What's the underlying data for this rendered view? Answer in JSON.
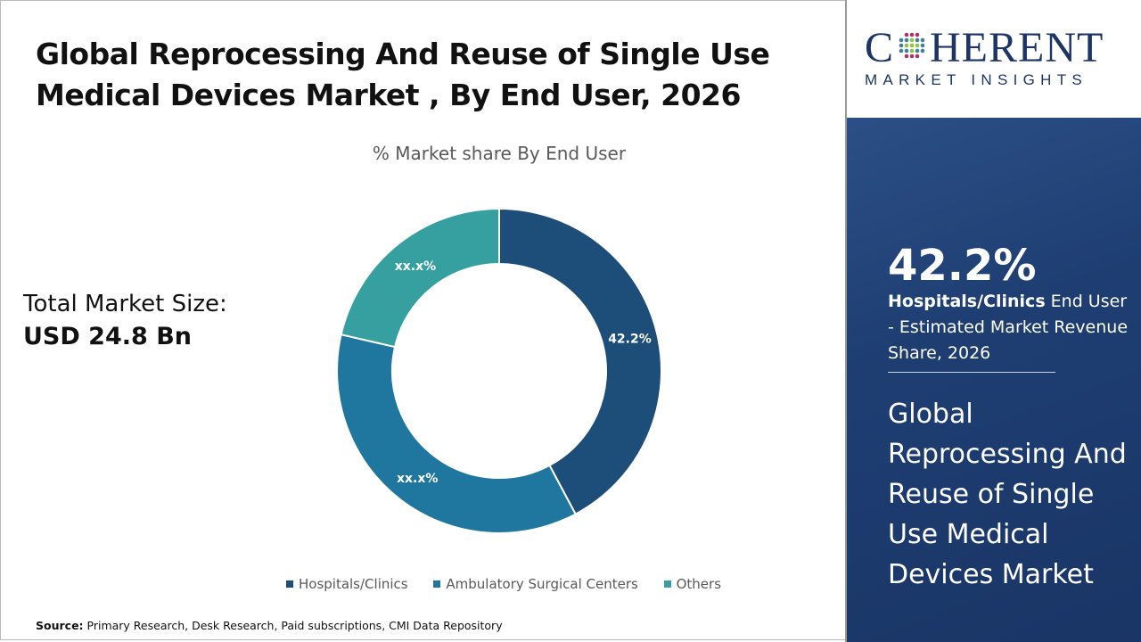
{
  "title": "Global Reprocessing And Reuse of Single Use Medical Devices Market , By End User, 2026",
  "total_market": {
    "label": "Total Market Size:",
    "value": "USD 24.8 Bn"
  },
  "source": {
    "label": "Source:",
    "text": "Primary Research, Desk Research, Paid subscriptions, CMI Data Repository"
  },
  "logo": {
    "name": "COHERENT",
    "tagline": "MARKET INSIGHTS"
  },
  "side_panel": {
    "highlight_value": "42.2%",
    "highlight_segment": "Hospitals/Clinics",
    "highlight_desc": " End User - Estimated Market Revenue Share, 2026",
    "market_name": "Global Reprocessing And Reuse of Single Use Medical Devices Market"
  },
  "chart_data": {
    "type": "pie",
    "donut": true,
    "title": "% Market share By End User",
    "categories": [
      "Hospitals/Clinics",
      "Ambulatory Surgical Centers",
      "Others"
    ],
    "values": [
      42.2,
      36.4,
      21.4
    ],
    "data_labels": [
      "42.2%",
      "xx.x%",
      "xx.x%"
    ],
    "colors": [
      "#1d4e79",
      "#1f77a0",
      "#36a0a0"
    ],
    "legend_position": "bottom"
  }
}
